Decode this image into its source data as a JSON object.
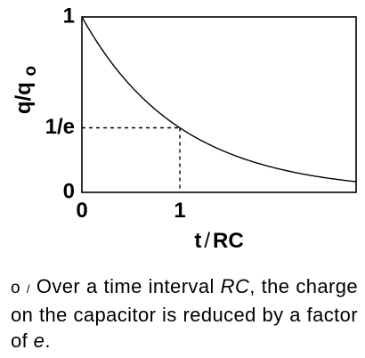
{
  "chart_data": {
    "type": "line",
    "xlabel": "t/RC",
    "ylabel": "q/qo",
    "x_ticks": [
      "0",
      "1"
    ],
    "y_ticks": [
      "0",
      "1/e",
      "1"
    ],
    "xlim": [
      0,
      2.8
    ],
    "ylim": [
      0,
      1
    ],
    "grid": false,
    "series": [
      {
        "function": "exp(-x)",
        "x": [
          0,
          0.2,
          0.4,
          0.6,
          0.8,
          1.0,
          1.2,
          1.4,
          1.6,
          1.8,
          2.0,
          2.2,
          2.4,
          2.6,
          2.8
        ],
        "y": [
          1.0,
          0.819,
          0.67,
          0.549,
          0.449,
          0.368,
          0.301,
          0.247,
          0.202,
          0.165,
          0.135,
          0.111,
          0.091,
          0.074,
          0.061
        ]
      }
    ],
    "reference_point": {
      "x": 1,
      "y": 0.368
    },
    "colors": {
      "line": "#000000",
      "axes": "#000000"
    }
  },
  "caption": {
    "label": "o",
    "separator": "/",
    "text_1": "Over a time interval ",
    "em_1": "RC",
    "text_2": ", the charge on the capacitor is reduced by a factor of ",
    "em_2": "e",
    "text_3": "."
  }
}
